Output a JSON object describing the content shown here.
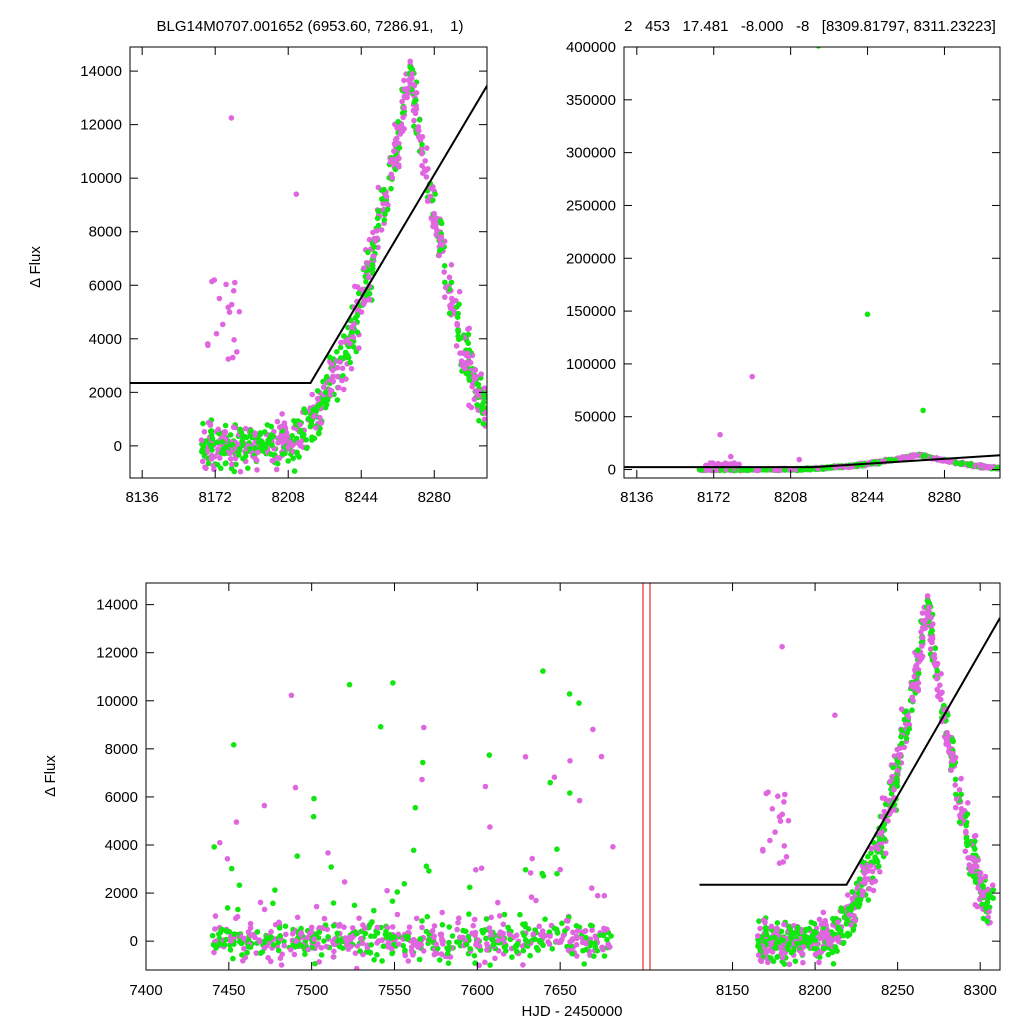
{
  "colors": {
    "series_a": "#e066e0",
    "series_b": "#11e611",
    "model": "#000000",
    "gap_marker": "#e03030",
    "frame": "#000000"
  },
  "chart_data": [
    {
      "id": "top-left",
      "type": "scatter",
      "title": "BLG14M0707.001652 (6953.60, 7286.91,    1)",
      "xlabel": "",
      "ylabel": "Δ Flux",
      "xlim": [
        8130,
        8306
      ],
      "ylim": [
        -1200,
        14900
      ],
      "xticks": [
        8136,
        8172,
        8208,
        8244,
        8280
      ],
      "yticks": [
        0,
        2000,
        4000,
        6000,
        8000,
        10000,
        12000,
        14000
      ],
      "tick_labels_x": [
        "8136",
        "8172",
        "8208",
        "8244",
        "8280"
      ],
      "tick_labels_y": [
        "0",
        "2000",
        "4000",
        "6000",
        "8000",
        "10000",
        "12000",
        "14000"
      ],
      "model_line": [
        [
          8130,
          2350
        ],
        [
          8219,
          2350
        ],
        [
          8306,
          13450
        ]
      ],
      "grid": false
    },
    {
      "id": "top-right",
      "type": "scatter",
      "title": "2   453   17.481   -8.000   -8   [8309.81797, 8311.23223]",
      "xlabel": "",
      "ylabel": "",
      "xlim": [
        8130,
        8306
      ],
      "ylim": [
        -8000,
        400000
      ],
      "xticks": [
        8136,
        8172,
        8208,
        8244,
        8280
      ],
      "yticks": [
        0,
        50000,
        100000,
        150000,
        200000,
        250000,
        300000,
        350000,
        400000
      ],
      "tick_labels_x": [
        "8136",
        "8172",
        "8208",
        "8244",
        "8280"
      ],
      "tick_labels_y": [
        "0",
        "50000",
        "100000",
        "150000",
        "200000",
        "250000",
        "300000",
        "350000",
        "400000"
      ],
      "model_line": [
        [
          8130,
          2350
        ],
        [
          8219,
          2350
        ],
        [
          8306,
          13450
        ]
      ],
      "outliers": [
        [
          8221,
          401000
        ],
        [
          8244,
          147000
        ],
        [
          8190,
          88000
        ],
        [
          8270,
          56000
        ],
        [
          8175,
          33000
        ]
      ],
      "grid": false
    },
    {
      "id": "bottom",
      "type": "scatter",
      "title": "",
      "xlabel": "HJD - 2450000",
      "ylabel": "Δ Flux",
      "ylim": [
        -1200,
        14900
      ],
      "segments": [
        {
          "xlim": [
            7400,
            7700
          ],
          "ticks": [
            7400,
            7450,
            7500,
            7550,
            7600,
            7650
          ],
          "tick_labels": [
            "7400",
            "7450",
            "7500",
            "7550",
            "7600",
            "7650"
          ]
        },
        {
          "xlim": [
            8100,
            8312
          ],
          "ticks": [
            8150,
            8200,
            8250,
            8300
          ],
          "tick_labels": [
            "8150",
            "8200",
            "8250",
            "8300"
          ]
        }
      ],
      "yticks": [
        0,
        2000,
        4000,
        6000,
        8000,
        10000,
        12000,
        14000
      ],
      "tick_labels_y": [
        "0",
        "2000",
        "4000",
        "6000",
        "8000",
        "10000",
        "12000",
        "14000"
      ],
      "model_line": [
        [
          8130,
          2350
        ],
        [
          8219,
          2350
        ],
        [
          8312,
          13450
        ]
      ],
      "season1_points": {
        "x_range": [
          7440,
          7682
        ],
        "baseline": 0,
        "scatter_fraction": 0.12
      },
      "grid": false
    }
  ]
}
